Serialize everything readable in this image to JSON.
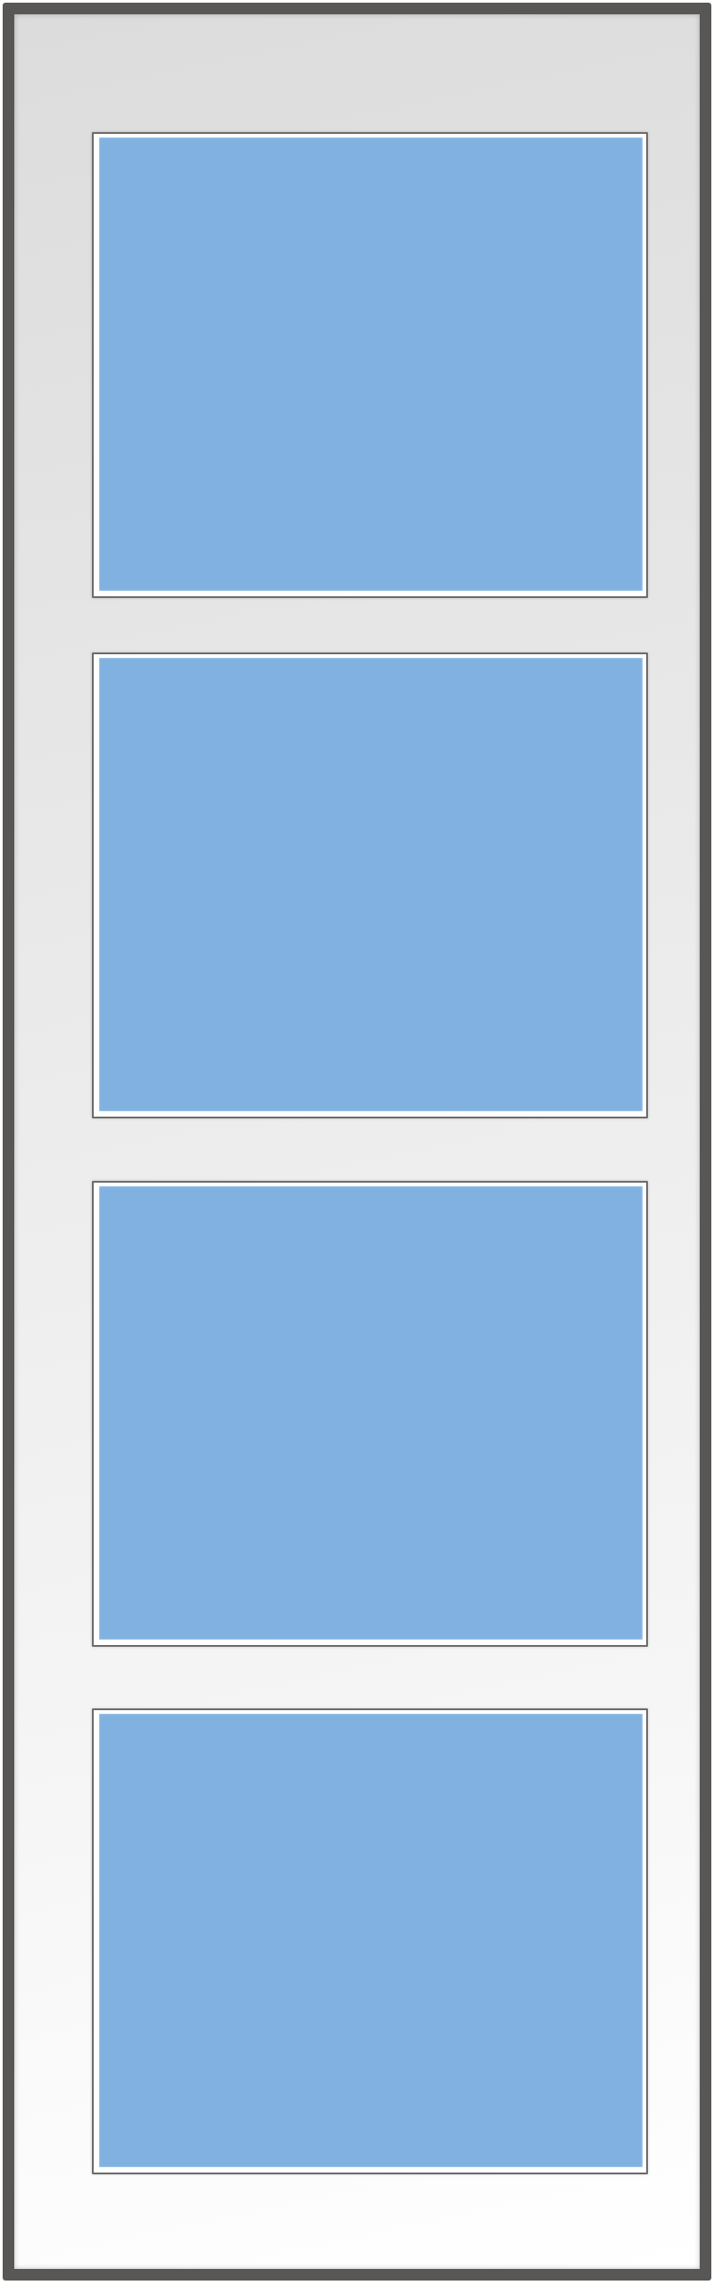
{
  "strip": {
    "frame_color": "#595755",
    "background_top": "#dcdcdc",
    "background_bottom": "#ffffff",
    "slots": [
      {
        "fill": "#80b1e1"
      },
      {
        "fill": "#80b1e1"
      },
      {
        "fill": "#80b1e1"
      },
      {
        "fill": "#80b1e1"
      }
    ]
  }
}
